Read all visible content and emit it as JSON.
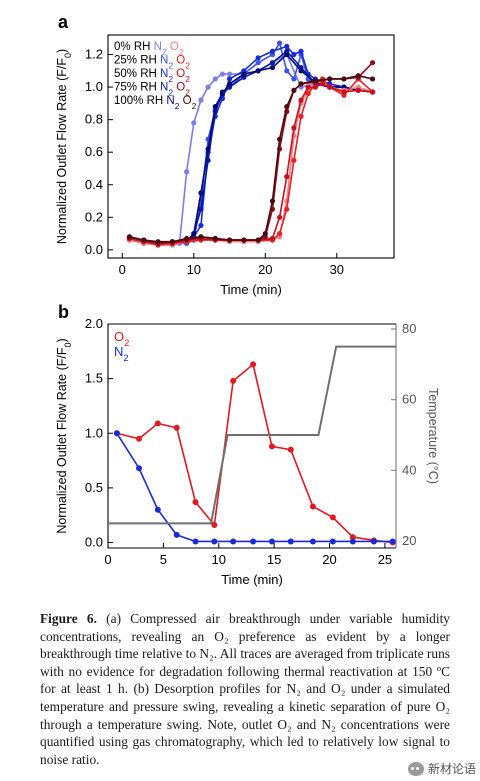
{
  "chart_data": [
    {
      "panel": "a",
      "type": "line",
      "xlabel": "Time (min)",
      "ylabel": "Normalized Outlet Flow Rate (F/F",
      "ylabel_sub": "0",
      "ylabel_close": ")",
      "xlim": [
        -2,
        38
      ],
      "ylim": [
        -0.05,
        1.32
      ],
      "xticks": [
        0,
        10,
        20,
        30
      ],
      "yticks": [
        0.0,
        0.2,
        0.4,
        0.6,
        0.8,
        1.0,
        1.2
      ],
      "ytick_labels": [
        "0.0",
        "0.2",
        "0.4",
        "0.6",
        "0.8",
        "1.0",
        "1.2"
      ],
      "legend": [
        {
          "rh": "0% RH",
          "n2": "N",
          "sub": "2",
          "o2": "O",
          "sub2": "2"
        },
        {
          "rh": "25% RH",
          "n2": "N",
          "sub": "2",
          "o2": "O",
          "sub2": "2"
        },
        {
          "rh": "50% RH",
          "n2": "N",
          "sub": "2",
          "o2": "O",
          "sub2": "2"
        },
        {
          "rh": "75% RH",
          "n2": "N",
          "sub": "2",
          "o2": "O",
          "sub2": "2"
        },
        {
          "rh": "100% RH",
          "n2": "N",
          "sub": "2",
          "o2": "O",
          "sub2": "2"
        }
      ],
      "series": [
        {
          "gas": "N2",
          "rh": "0% RH",
          "color": "#7b7fe6",
          "x": [
            1,
            3,
            5,
            7,
            8,
            9,
            10,
            11,
            12,
            13,
            14,
            15,
            17,
            19,
            21,
            23,
            25,
            27,
            29,
            31,
            33,
            35
          ],
          "y": [
            0.06,
            0.04,
            0.03,
            0.03,
            0.04,
            0.48,
            0.78,
            0.92,
            1.0,
            1.05,
            1.08,
            1.08,
            1.08,
            1.1,
            1.15,
            1.2,
            1.0,
            1.02,
            1.0,
            1.0,
            0.98,
            0.97
          ]
        },
        {
          "gas": "N2",
          "rh": "25% RH",
          "color": "#3d52e8",
          "x": [
            1,
            3,
            5,
            7,
            9,
            10,
            11,
            12,
            13,
            14,
            15,
            17,
            19,
            21,
            22,
            23,
            24,
            25,
            26,
            27,
            29,
            31,
            33,
            35
          ],
          "y": [
            0.06,
            0.05,
            0.03,
            0.04,
            0.04,
            0.06,
            0.3,
            0.68,
            0.86,
            0.95,
            1.0,
            1.08,
            1.15,
            1.2,
            1.27,
            1.1,
            1.05,
            1.2,
            1.05,
            1.02,
            1.0,
            1.0,
            0.98,
            0.97
          ]
        },
        {
          "gas": "N2",
          "rh": "50% RH",
          "color": "#1a2bd6",
          "x": [
            1,
            3,
            5,
            7,
            9,
            10,
            11,
            12,
            13,
            14,
            15,
            17,
            19,
            21,
            23,
            24,
            25,
            26,
            27,
            29,
            31,
            33,
            35
          ],
          "y": [
            0.07,
            0.05,
            0.04,
            0.04,
            0.05,
            0.08,
            0.15,
            0.6,
            0.82,
            0.93,
            1.05,
            1.1,
            1.18,
            1.22,
            1.25,
            1.2,
            1.22,
            1.08,
            1.05,
            1.02,
            1.0,
            0.98,
            0.97
          ]
        },
        {
          "gas": "N2",
          "rh": "75% RH",
          "color": "#0a1aa8",
          "x": [
            1,
            3,
            5,
            7,
            9,
            10,
            11,
            12,
            13,
            14,
            15,
            17,
            19,
            21,
            23,
            25,
            27,
            29,
            31,
            33,
            35
          ],
          "y": [
            0.07,
            0.05,
            0.04,
            0.04,
            0.05,
            0.1,
            0.25,
            0.55,
            0.85,
            0.97,
            1.0,
            1.06,
            1.1,
            1.15,
            1.22,
            1.12,
            1.02,
            1.0,
            1.0,
            0.98,
            0.97
          ]
        },
        {
          "gas": "N2",
          "rh": "100% RH",
          "color": "#000c70",
          "x": [
            1,
            3,
            5,
            7,
            9,
            10,
            11,
            12,
            13,
            14,
            15,
            17,
            19,
            21,
            23,
            25,
            27,
            29,
            31,
            33,
            35
          ],
          "y": [
            0.07,
            0.06,
            0.04,
            0.05,
            0.05,
            0.1,
            0.35,
            0.62,
            0.88,
            0.96,
            1.02,
            1.08,
            1.1,
            1.12,
            1.2,
            1.1,
            1.03,
            1.0,
            1.0,
            0.98,
            0.97
          ]
        },
        {
          "gas": "O2",
          "rh": "0% RH",
          "color": "#f08080",
          "x": [
            1,
            3,
            5,
            7,
            9,
            11,
            13,
            15,
            17,
            19,
            21,
            22,
            23,
            24,
            25,
            26,
            27,
            28,
            29,
            31,
            33,
            35
          ],
          "y": [
            0.06,
            0.04,
            0.03,
            0.03,
            0.05,
            0.07,
            0.06,
            0.05,
            0.05,
            0.05,
            0.06,
            0.08,
            0.3,
            0.7,
            0.9,
            0.98,
            1.0,
            1.02,
            1.0,
            0.98,
            1.0,
            0.97
          ]
        },
        {
          "gas": "O2",
          "rh": "25% RH",
          "color": "#e8202a",
          "x": [
            1,
            3,
            5,
            7,
            9,
            11,
            13,
            15,
            17,
            19,
            21,
            22,
            23,
            24,
            25,
            26,
            27,
            28,
            29,
            31,
            33,
            35
          ],
          "y": [
            0.07,
            0.05,
            0.03,
            0.04,
            0.05,
            0.06,
            0.06,
            0.06,
            0.06,
            0.06,
            0.06,
            0.1,
            0.25,
            0.55,
            0.82,
            0.96,
            1.02,
            1.05,
            1.0,
            0.95,
            1.05,
            0.97
          ]
        },
        {
          "gas": "O2",
          "rh": "50% RH",
          "color": "#c8101e",
          "x": [
            1,
            3,
            5,
            7,
            9,
            11,
            13,
            15,
            17,
            19,
            21,
            22,
            23,
            24,
            25,
            26,
            27,
            28,
            29,
            31,
            33,
            35
          ],
          "y": [
            0.07,
            0.05,
            0.04,
            0.04,
            0.06,
            0.07,
            0.06,
            0.06,
            0.06,
            0.06,
            0.07,
            0.2,
            0.45,
            0.75,
            0.92,
            1.0,
            1.0,
            1.02,
            1.0,
            0.97,
            0.98,
            0.97
          ]
        },
        {
          "gas": "O2",
          "rh": "75% RH",
          "color": "#8a0f1a",
          "x": [
            1,
            3,
            5,
            7,
            9,
            11,
            13,
            15,
            17,
            19,
            20,
            21,
            22,
            23,
            24,
            25,
            27,
            29,
            31,
            33,
            35
          ],
          "y": [
            0.08,
            0.06,
            0.04,
            0.05,
            0.06,
            0.08,
            0.07,
            0.06,
            0.06,
            0.06,
            0.08,
            0.25,
            0.62,
            0.85,
            0.98,
            1.02,
            1.03,
            1.05,
            1.05,
            1.06,
            1.15
          ]
        },
        {
          "gas": "O2",
          "rh": "100% RH",
          "color": "#4d0a12",
          "x": [
            1,
            3,
            5,
            7,
            9,
            11,
            13,
            15,
            17,
            19,
            20,
            21,
            22,
            23,
            24,
            25,
            27,
            29,
            31,
            33,
            35
          ],
          "y": [
            0.08,
            0.06,
            0.05,
            0.05,
            0.07,
            0.08,
            0.07,
            0.06,
            0.06,
            0.06,
            0.1,
            0.3,
            0.68,
            0.88,
            0.98,
            1.02,
            1.04,
            1.05,
            1.05,
            1.07,
            1.05
          ]
        }
      ]
    },
    {
      "panel": "b",
      "type": "line",
      "xlabel": "Time (min)",
      "ylabel": "Normalized Outlet Flow Rate (F/F",
      "ylabel_sub": "0",
      "ylabel_close": ")",
      "y2label": "Temperature (",
      "y2label_unit": "°C)",
      "xlim": [
        0,
        26
      ],
      "ylim": [
        -0.05,
        2.0
      ],
      "y2lim": [
        20,
        80
      ],
      "xticks": [
        0,
        5,
        10,
        15,
        20,
        25
      ],
      "yticks": [
        0.0,
        0.5,
        1.0,
        1.5,
        2.0
      ],
      "ytick_labels": [
        "0.0",
        "0.5",
        "1.0",
        "1.5",
        "2.0"
      ],
      "y2ticks": [
        20,
        40,
        60,
        80
      ],
      "legend": [
        {
          "name": "O",
          "sub": "2",
          "color": "#e01a22"
        },
        {
          "name": "N",
          "sub": "2",
          "color": "#1a2bd6"
        }
      ],
      "series": [
        {
          "name": "O2",
          "axis": "left",
          "color": "#e01a22",
          "marker": true,
          "x": [
            0.8,
            2.8,
            4.5,
            6.2,
            7.9,
            9.6,
            11.3,
            13.1,
            14.8,
            16.5,
            18.5,
            20.3,
            22.1,
            24.0,
            25.7
          ],
          "y": [
            1.0,
            0.95,
            1.09,
            1.05,
            0.37,
            0.16,
            1.48,
            1.63,
            0.88,
            0.85,
            0.33,
            0.23,
            0.05,
            0.02,
            0.0
          ]
        },
        {
          "name": "N2",
          "axis": "left",
          "color": "#1a2bd6",
          "marker": true,
          "x": [
            0.8,
            2.8,
            4.5,
            6.2,
            7.9,
            9.6,
            11.3,
            13.1,
            14.8,
            16.5,
            18.5,
            20.3,
            22.1,
            24.0,
            25.7
          ],
          "y": [
            1.0,
            0.68,
            0.3,
            0.07,
            0.01,
            0.01,
            0.01,
            0.01,
            0.01,
            0.01,
            0.01,
            0.01,
            0.01,
            0.01,
            0.01
          ]
        },
        {
          "name": "Temperature",
          "axis": "right",
          "color": "#707070",
          "marker": false,
          "x": [
            0.0,
            9.3,
            10.8,
            19.0,
            20.6,
            26.0
          ],
          "y": [
            25,
            25,
            50,
            50,
            75,
            75
          ]
        }
      ]
    }
  ],
  "caption": {
    "label": "Figure 6.",
    "text": "(a) Compressed air breakthrough under variable humidity concentrations, revealing an O₂ preference as evident by a longer breakthrough time relative to N₂. All traces are averaged from triplicate runs with no evidence for degradation following thermal reactivation at 150 ºC for at least 1 h. (b) Desorption profiles for N₂ and O₂ under a simulated temperature and pressure swing, revealing a kinetic separation of pure O₂ through a temperature swing. Note, outlet O₂ and N₂ concentrations were quantified using gas chromatography, which led to relatively low signal to noise ratio."
  },
  "watermark": {
    "text": "新材论语",
    "icon": "wechat-icon"
  }
}
